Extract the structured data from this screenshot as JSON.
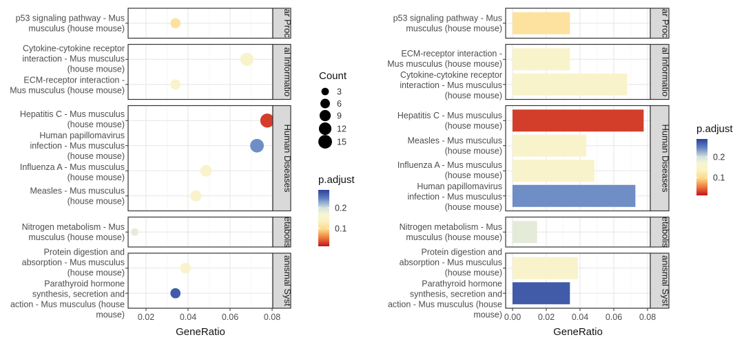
{
  "chart_data": [
    {
      "type": "scatter",
      "xlabel": "GeneRatio",
      "xlim": [
        0.0115,
        0.0825
      ],
      "xticks": [
        "0.02",
        "0.04",
        "0.06",
        "0.08"
      ],
      "xtick_values": [
        0.02,
        0.04,
        0.06,
        0.08
      ],
      "grid": true,
      "legend_placement": "right",
      "size_legend": {
        "title": "Count",
        "values": [
          3,
          6,
          9,
          12,
          15
        ],
        "labels": [
          "3",
          "6",
          "9",
          "12",
          "15"
        ]
      },
      "color_legend": {
        "title": "p.adjust",
        "range": [
          0.013,
          0.287
        ],
        "ticks": [
          "0.1",
          "0.2"
        ],
        "tick_values": [
          0.1,
          0.2
        ]
      },
      "panels": [
        {
          "strip": "ar Proc",
          "terms": [
            {
              "label": [
                "p53 signaling pathway - Mus",
                "musculus (house mouse)"
              ],
              "gene_ratio": 0.034,
              "count": 7,
              "p_adjust": 0.11
            }
          ]
        },
        {
          "strip": "al Informatio",
          "terms": [
            {
              "label": [
                "Cytokine-cytokine receptor",
                "interaction - Mus musculus",
                "(house mouse)"
              ],
              "gene_ratio": 0.068,
              "count": 14,
              "p_adjust": 0.15
            },
            {
              "label": [
                "ECM-receptor interaction -",
                "Mus musculus (house mouse)"
              ],
              "gene_ratio": 0.034,
              "count": 7,
              "p_adjust": 0.15
            }
          ]
        },
        {
          "strip": "Human Diseases",
          "terms": [
            {
              "label": [
                "Hepatitis C - Mus musculus",
                "(house mouse)"
              ],
              "gene_ratio": 0.0777,
              "count": 16,
              "p_adjust": 0.03
            },
            {
              "label": [
                "Human papillomavirus",
                "infection - Mus musculus",
                "(house mouse)"
              ],
              "gene_ratio": 0.0728,
              "count": 15,
              "p_adjust": 0.24
            },
            {
              "label": [
                "Influenza A - Mus musculus",
                "(house mouse)"
              ],
              "gene_ratio": 0.0485,
              "count": 10,
              "p_adjust": 0.15
            },
            {
              "label": [
                "Measles - Mus musculus",
                "(house mouse)"
              ],
              "gene_ratio": 0.0437,
              "count": 9,
              "p_adjust": 0.15
            }
          ]
        },
        {
          "strip": "etabolis",
          "terms": [
            {
              "label": [
                "Nitrogen metabolism - Mus",
                "musculus (house mouse)"
              ],
              "gene_ratio": 0.0146,
              "count": 3,
              "p_adjust": 0.185
            }
          ]
        },
        {
          "strip": "anismal Syst",
          "terms": [
            {
              "label": [
                "Protein digestion and",
                "absorption - Mus musculus",
                "(house mouse)"
              ],
              "gene_ratio": 0.0388,
              "count": 8,
              "p_adjust": 0.15
            },
            {
              "label": [
                "Parathyroid hormone",
                "synthesis, secretion and",
                "action - Mus musculus (house",
                "mouse)"
              ],
              "gene_ratio": 0.034,
              "count": 7,
              "p_adjust": 0.27
            }
          ]
        }
      ]
    },
    {
      "type": "bar",
      "orientation": "horizontal",
      "xlabel": "GeneRatio",
      "xlim": [
        -0.002,
        0.0815
      ],
      "xticks": [
        "0.00",
        "0.02",
        "0.04",
        "0.06",
        "0.08"
      ],
      "xtick_values": [
        0,
        0.02,
        0.04,
        0.06,
        0.08
      ],
      "grid": true,
      "legend_placement": "right",
      "color_legend": {
        "title": "p.adjust",
        "range": [
          0.013,
          0.287
        ],
        "ticks": [
          "0.1",
          "0.2"
        ],
        "tick_values": [
          0.1,
          0.2
        ]
      },
      "panels": [
        {
          "strip": "ar Proc",
          "terms": [
            {
              "label": [
                "p53 signaling pathway - Mus",
                "musculus (house mouse)"
              ],
              "gene_ratio": 0.034,
              "p_adjust": 0.11
            }
          ]
        },
        {
          "strip": "al Informatio",
          "terms": [
            {
              "label": [
                "ECM-receptor interaction -",
                "Mus musculus (house mouse)"
              ],
              "gene_ratio": 0.034,
              "p_adjust": 0.15
            },
            {
              "label": [
                "Cytokine-cytokine receptor",
                "interaction - Mus musculus",
                "(house mouse)"
              ],
              "gene_ratio": 0.068,
              "p_adjust": 0.15
            }
          ]
        },
        {
          "strip": "Human Diseases",
          "terms": [
            {
              "label": [
                "Hepatitis C - Mus musculus",
                "(house mouse)"
              ],
              "gene_ratio": 0.0777,
              "p_adjust": 0.03
            },
            {
              "label": [
                "Measles - Mus musculus",
                "(house mouse)"
              ],
              "gene_ratio": 0.0437,
              "p_adjust": 0.15
            },
            {
              "label": [
                "Influenza A - Mus musculus",
                "(house mouse)"
              ],
              "gene_ratio": 0.0485,
              "p_adjust": 0.15
            },
            {
              "label": [
                "Human papillomavirus",
                "infection - Mus musculus",
                "(house mouse)"
              ],
              "gene_ratio": 0.0728,
              "p_adjust": 0.24
            }
          ]
        },
        {
          "strip": "etabolis",
          "terms": [
            {
              "label": [
                "Nitrogen metabolism - Mus",
                "musculus (house mouse)"
              ],
              "gene_ratio": 0.0146,
              "p_adjust": 0.185
            }
          ]
        },
        {
          "strip": "anismal Syst",
          "terms": [
            {
              "label": [
                "Protein digestion and",
                "absorption - Mus musculus",
                "(house mouse)"
              ],
              "gene_ratio": 0.0388,
              "p_adjust": 0.15
            },
            {
              "label": [
                "Parathyroid hormone",
                "synthesis, secretion and",
                "action - Mus musculus (house",
                "mouse)"
              ],
              "gene_ratio": 0.034,
              "p_adjust": 0.27
            }
          ]
        }
      ]
    }
  ]
}
